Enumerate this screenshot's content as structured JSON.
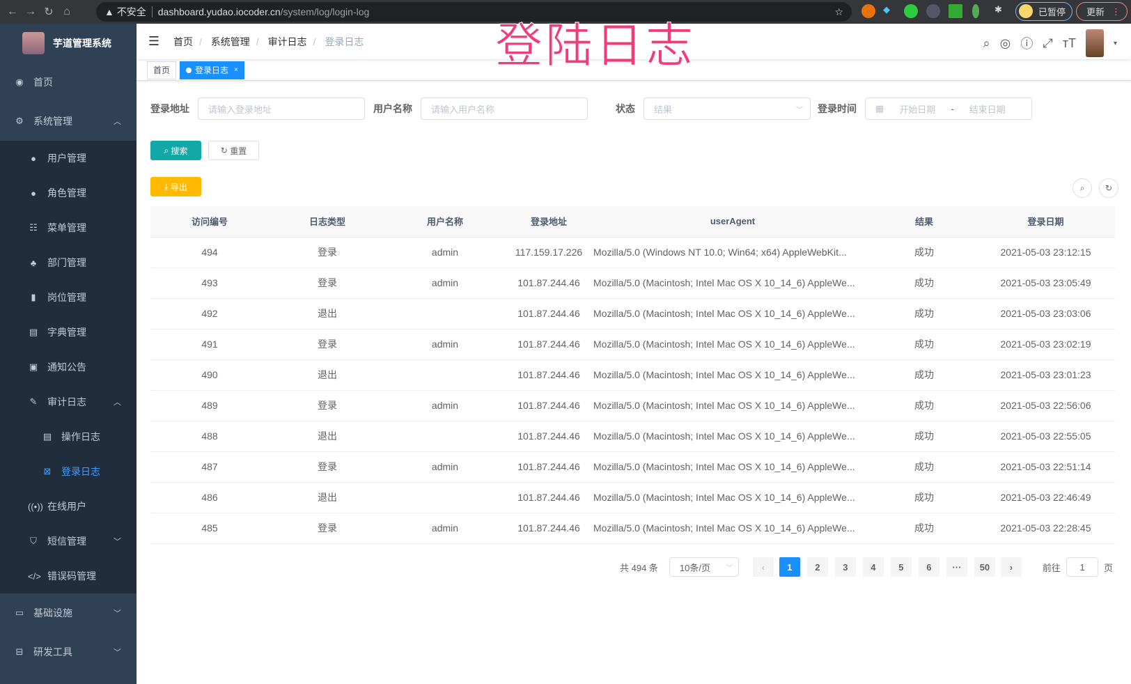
{
  "browser": {
    "insecure_label": "不安全",
    "url_host": "dashboard.yudao.iocoder.cn",
    "url_path": "/system/log/login-log",
    "paused_label": "已暂停",
    "update_label": "更新"
  },
  "overlay_title": "登陆日志",
  "sidebar": {
    "title": "芋道管理系统",
    "items": [
      {
        "label": "首页",
        "icon": "dashboard-icon"
      },
      {
        "label": "系统管理",
        "icon": "gear-icon"
      },
      {
        "label": "用户管理",
        "icon": "user-icon"
      },
      {
        "label": "角色管理",
        "icon": "peoples-icon"
      },
      {
        "label": "菜单管理",
        "icon": "tree-table-icon"
      },
      {
        "label": "部门管理",
        "icon": "tree-icon"
      },
      {
        "label": "岗位管理",
        "icon": "post-icon"
      },
      {
        "label": "字典管理",
        "icon": "dict-icon"
      },
      {
        "label": "通知公告",
        "icon": "message-icon"
      },
      {
        "label": "审计日志",
        "icon": "log-icon"
      },
      {
        "label": "操作日志",
        "icon": "form-icon"
      },
      {
        "label": "登录日志",
        "icon": "logininfor-icon"
      },
      {
        "label": "在线用户",
        "icon": "online-icon"
      },
      {
        "label": "短信管理",
        "icon": "validCode-icon"
      },
      {
        "label": "错误码管理",
        "icon": "code-icon"
      },
      {
        "label": "基础设施",
        "icon": "monitor-icon"
      },
      {
        "label": "研发工具",
        "icon": "tool-icon"
      }
    ]
  },
  "breadcrumb": [
    "首页",
    "系统管理",
    "审计日志",
    "登录日志"
  ],
  "tags": {
    "home": "首页",
    "active": "登录日志",
    "close": "×"
  },
  "filters": {
    "ip_label": "登录地址",
    "ip_placeholder": "请输入登录地址",
    "user_label": "用户名称",
    "user_placeholder": "请输入用户名称",
    "status_label": "状态",
    "status_placeholder": "结果",
    "time_label": "登录时间",
    "start_placeholder": "开始日期",
    "range_sep": "-",
    "end_placeholder": "结束日期"
  },
  "buttons": {
    "search": "搜索",
    "reset": "重置",
    "export": "导出"
  },
  "colors": {
    "primary": "#1890ff",
    "search_btn": "#13a8a8",
    "export_btn": "#ffba00",
    "sidebar": "#304156"
  },
  "table": {
    "headers": [
      "访问编号",
      "日志类型",
      "用户名称",
      "登录地址",
      "userAgent",
      "结果",
      "登录日期"
    ],
    "rows": [
      [
        "494",
        "登录",
        "admin",
        "117.159.17.226",
        "Mozilla/5.0 (Windows NT 10.0; Win64; x64) AppleWebKit...",
        "成功",
        "2021-05-03 23:12:15"
      ],
      [
        "493",
        "登录",
        "admin",
        "101.87.244.46",
        "Mozilla/5.0 (Macintosh; Intel Mac OS X 10_14_6) AppleWe...",
        "成功",
        "2021-05-03 23:05:49"
      ],
      [
        "492",
        "退出",
        "",
        "101.87.244.46",
        "Mozilla/5.0 (Macintosh; Intel Mac OS X 10_14_6) AppleWe...",
        "成功",
        "2021-05-03 23:03:06"
      ],
      [
        "491",
        "登录",
        "admin",
        "101.87.244.46",
        "Mozilla/5.0 (Macintosh; Intel Mac OS X 10_14_6) AppleWe...",
        "成功",
        "2021-05-03 23:02:19"
      ],
      [
        "490",
        "退出",
        "",
        "101.87.244.46",
        "Mozilla/5.0 (Macintosh; Intel Mac OS X 10_14_6) AppleWe...",
        "成功",
        "2021-05-03 23:01:23"
      ],
      [
        "489",
        "登录",
        "admin",
        "101.87.244.46",
        "Mozilla/5.0 (Macintosh; Intel Mac OS X 10_14_6) AppleWe...",
        "成功",
        "2021-05-03 22:56:06"
      ],
      [
        "488",
        "退出",
        "",
        "101.87.244.46",
        "Mozilla/5.0 (Macintosh; Intel Mac OS X 10_14_6) AppleWe...",
        "成功",
        "2021-05-03 22:55:05"
      ],
      [
        "487",
        "登录",
        "admin",
        "101.87.244.46",
        "Mozilla/5.0 (Macintosh; Intel Mac OS X 10_14_6) AppleWe...",
        "成功",
        "2021-05-03 22:51:14"
      ],
      [
        "486",
        "退出",
        "",
        "101.87.244.46",
        "Mozilla/5.0 (Macintosh; Intel Mac OS X 10_14_6) AppleWe...",
        "成功",
        "2021-05-03 22:46:49"
      ],
      [
        "485",
        "登录",
        "admin",
        "101.87.244.46",
        "Mozilla/5.0 (Macintosh; Intel Mac OS X 10_14_6) AppleWe...",
        "成功",
        "2021-05-03 22:28:45"
      ]
    ]
  },
  "pagination": {
    "total": "共 494 条",
    "page_size": "10条/页",
    "pages": [
      "1",
      "2",
      "3",
      "4",
      "5",
      "6",
      "···",
      "50"
    ],
    "prev": "‹",
    "next": "›",
    "goto_label": "前往",
    "goto_value": "1",
    "goto_suffix": "页"
  }
}
